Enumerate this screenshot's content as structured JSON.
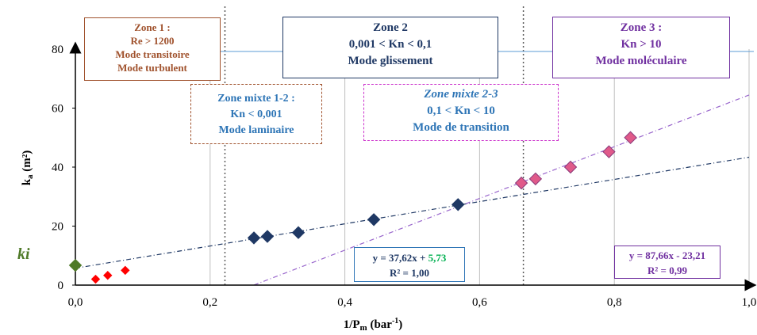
{
  "chart_data": {
    "type": "scatter",
    "xlabel": "1/Pm (bar-1)",
    "ylabel": "ka (m²)",
    "xlim": [
      0,
      1.0
    ],
    "ylim": [
      0,
      80
    ],
    "xticks": [
      "0,0",
      "0,2",
      "0,4",
      "0,6",
      "0,8",
      "1,0"
    ],
    "yticks": [
      "0",
      "20",
      "40",
      "60",
      "80"
    ],
    "grid": "vertical",
    "ki_label": "ki",
    "zone_boundaries_x": [
      0.222,
      0.665
    ],
    "series": [
      {
        "color": "#ff0000",
        "points": [
          [
            0.03,
            2.0
          ],
          [
            0.048,
            3.3
          ],
          [
            0.074,
            5.0
          ]
        ]
      },
      {
        "color": "#1f3864",
        "points": [
          [
            0.265,
            16.0
          ],
          [
            0.285,
            16.5
          ],
          [
            0.331,
            17.8
          ],
          [
            0.443,
            22.2
          ],
          [
            0.568,
            27.3
          ]
        ]
      },
      {
        "color": "#e05a8a",
        "points": [
          [
            0.662,
            34.6
          ],
          [
            0.683,
            36.0
          ],
          [
            0.735,
            40.0
          ],
          [
            0.792,
            45.2
          ],
          [
            0.824,
            50.0
          ]
        ]
      },
      {
        "color": "#4f7a28",
        "points": [
          [
            0.0,
            6.7
          ]
        ]
      }
    ],
    "fits": [
      {
        "slope": 37.62,
        "intercept": 5.73,
        "color": "#1f3864",
        "x_from": 0.0,
        "x_to": 1.0
      },
      {
        "slope": 87.66,
        "intercept": -23.21,
        "color": "#9966cc",
        "x_from": 0.265,
        "x_to": 1.0
      }
    ]
  },
  "zones": {
    "z1": {
      "title": "Zone 1 :",
      "l1": "Re > 1200",
      "l2": "Mode  transitoire",
      "l3": "Mode  turbulent"
    },
    "z2": {
      "title": "Zone 2",
      "l1": "0,001 < Kn < 0,1",
      "l2": "Mode glissement"
    },
    "z3": {
      "title": "Zone 3 :",
      "l1": "Kn > 10",
      "l2": "Mode moléculaire"
    },
    "m12": {
      "title": "Zone mixte 1-2 :",
      "l1": "Kn < 0,001",
      "l2": "Mode  laminaire"
    },
    "m23": {
      "title": "Zone mixte 2-3",
      "l1": "0,1 < Kn < 10",
      "l2": "Mode de transition"
    }
  },
  "equations": {
    "eq1": {
      "prefix": "y = 37,62x + ",
      "intercept": "5,73",
      "r2": "R² = 1,00"
    },
    "eq2": {
      "line": "y = 87,66x - 23,21",
      "r2": "R² = 0,99"
    }
  },
  "colors": {
    "axis": "#000000",
    "grid": "#bfbfbf",
    "zone_divider": "#595959",
    "ki": "#4f7a28"
  }
}
